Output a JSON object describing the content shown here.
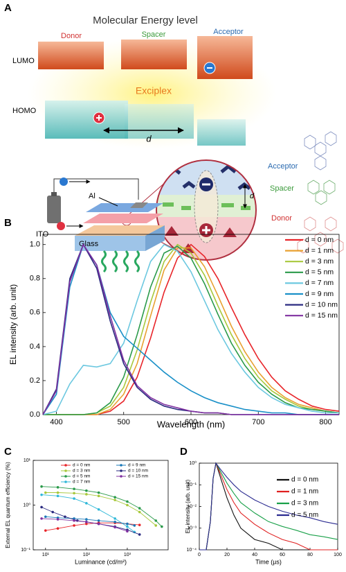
{
  "panel_a": {
    "label": "A",
    "title": "Molecular Energy level",
    "lumo": "LUMO",
    "homo": "HOMO",
    "donor": "Donor",
    "spacer": "Spacer",
    "acceptor": "Acceptor",
    "exciplex": "Exciplex",
    "distance": "d",
    "inset": {
      "acceptor": "Acceptor",
      "spacer": "Spacer",
      "donor": "Donor",
      "distance": "d"
    },
    "device": {
      "al": "Al",
      "ito": "ITO",
      "glass": "Glass"
    }
  },
  "chart_data": [
    {
      "type": "line",
      "panel": "B",
      "xlabel": "Wavelength (nm)",
      "ylabel": "EL intensity (arb. unit)",
      "xscale": "linear",
      "yscale": "linear",
      "markers": false,
      "x": [
        380,
        400,
        420,
        440,
        460,
        480,
        500,
        520,
        540,
        560,
        580,
        600,
        620,
        640,
        660,
        680,
        700,
        720,
        740,
        760,
        780,
        800,
        820
      ],
      "xlim": [
        380,
        820
      ],
      "xticks": [
        400,
        500,
        600,
        700,
        800
      ],
      "ylim": [
        0,
        1.06
      ],
      "yticks": [
        {
          "value": 0,
          "label": "0.0"
        },
        0.2,
        0.4,
        0.6,
        0.8,
        {
          "value": 1,
          "label": "1.0"
        }
      ],
      "series": [
        {
          "name": "d = 0 nm",
          "color": "#e8252a",
          "values": [
            0,
            0,
            0,
            0,
            0,
            0.02,
            0.08,
            0.22,
            0.45,
            0.72,
            0.92,
            1.0,
            0.93,
            0.8,
            0.63,
            0.47,
            0.33,
            0.22,
            0.14,
            0.09,
            0.05,
            0.03,
            0.02
          ]
        },
        {
          "name": "d = 1 nm",
          "color": "#e8a030",
          "values": [
            0,
            0,
            0,
            0,
            0,
            0.03,
            0.12,
            0.3,
            0.58,
            0.85,
            0.98,
            0.98,
            0.87,
            0.7,
            0.52,
            0.37,
            0.25,
            0.16,
            0.1,
            0.06,
            0.04,
            0.02,
            0.01
          ]
        },
        {
          "name": "d = 3 nm",
          "color": "#a8c83c",
          "values": [
            0,
            0,
            0,
            0,
            0.01,
            0.05,
            0.16,
            0.38,
            0.66,
            0.9,
            1.0,
            0.95,
            0.82,
            0.64,
            0.47,
            0.33,
            0.22,
            0.14,
            0.09,
            0.05,
            0.03,
            0.02,
            0.01
          ]
        },
        {
          "name": "d = 5 nm",
          "color": "#2a9a4a",
          "values": [
            0,
            0,
            0,
            0,
            0.01,
            0.07,
            0.22,
            0.47,
            0.75,
            0.95,
            0.99,
            0.92,
            0.77,
            0.59,
            0.42,
            0.29,
            0.19,
            0.12,
            0.07,
            0.04,
            0.03,
            0.02,
            0.01
          ]
        },
        {
          "name": "d = 7 nm",
          "color": "#6cc8e0",
          "values": [
            0,
            0.02,
            0.18,
            0.29,
            0.28,
            0.3,
            0.42,
            0.67,
            0.9,
            1.0,
            0.96,
            0.84,
            0.67,
            0.5,
            0.36,
            0.25,
            0.16,
            0.1,
            0.06,
            0.04,
            0.02,
            0.01,
            0.01
          ]
        },
        {
          "name": "d = 9 nm",
          "color": "#1a90c8",
          "values": [
            0,
            0.12,
            0.75,
            1.0,
            0.88,
            0.6,
            0.46,
            0.39,
            0.32,
            0.25,
            0.19,
            0.14,
            0.1,
            0.07,
            0.05,
            0.03,
            0.02,
            0.01,
            0.01,
            0,
            0,
            0,
            0
          ]
        },
        {
          "name": "d = 10 nm",
          "color": "#2a2a80",
          "values": [
            0,
            0.15,
            0.8,
            1.0,
            0.86,
            0.55,
            0.3,
            0.16,
            0.09,
            0.05,
            0.03,
            0.02,
            0.01,
            0.01,
            0,
            0,
            0,
            0,
            0,
            0,
            0,
            0,
            0
          ]
        },
        {
          "name": "d = 15 nm",
          "color": "#8030a0",
          "values": [
            0,
            0.14,
            0.78,
            1.0,
            0.88,
            0.58,
            0.32,
            0.17,
            0.1,
            0.06,
            0.04,
            0.02,
            0.01,
            0.01,
            0,
            0,
            0,
            0,
            0,
            0,
            0,
            0,
            0
          ]
        }
      ]
    },
    {
      "type": "line",
      "panel": "C",
      "xlabel": "Luminance (cd/m²)",
      "ylabel": "External EL quantum efficiency (%)",
      "xscale": "log",
      "yscale": "log",
      "markers": true,
      "xlim": [
        5,
        10000
      ],
      "xticks": [
        {
          "value": 10,
          "label": "10¹"
        },
        {
          "value": 100,
          "label": "10²"
        },
        {
          "value": 1000,
          "label": "10³"
        }
      ],
      "ylim": [
        0.1,
        10
      ],
      "yticks": [
        {
          "value": 0.1,
          "label": "10⁻¹"
        },
        {
          "value": 1,
          "label": "10⁰"
        },
        {
          "value": 10,
          "label": "10¹"
        }
      ],
      "series": [
        {
          "name": "d = 0 nm",
          "color": "#e8252a",
          "x": [
            10,
            20,
            50,
            100,
            200,
            500,
            1000,
            2000
          ],
          "values": [
            0.27,
            0.3,
            0.35,
            0.38,
            0.4,
            0.4,
            0.38,
            0.36
          ]
        },
        {
          "name": "d = 3 nm",
          "color": "#a8c83c",
          "x": [
            10,
            20,
            50,
            100,
            200,
            500,
            1000,
            2000,
            5000
          ],
          "values": [
            1.9,
            1.9,
            1.85,
            1.75,
            1.6,
            1.3,
            1.0,
            0.7,
            0.35
          ]
        },
        {
          "name": "d = 5 nm",
          "color": "#2a9a4a",
          "x": [
            8,
            20,
            50,
            100,
            200,
            500,
            1000,
            2000,
            5000,
            7000
          ],
          "values": [
            2.6,
            2.5,
            2.3,
            2.1,
            1.9,
            1.5,
            1.2,
            0.85,
            0.45,
            0.33
          ]
        },
        {
          "name": "d = 7 nm",
          "color": "#30b8d8",
          "x": [
            8,
            20,
            50,
            100,
            200,
            500,
            1000,
            1500
          ],
          "values": [
            1.7,
            1.6,
            1.4,
            1.1,
            0.8,
            0.5,
            0.33,
            0.25
          ]
        },
        {
          "name": "d = 9 nm",
          "color": "#1a78b8",
          "x": [
            10,
            20,
            50,
            100,
            200,
            500,
            1000,
            1500
          ],
          "values": [
            0.55,
            0.52,
            0.5,
            0.48,
            0.45,
            0.42,
            0.38,
            0.35
          ]
        },
        {
          "name": "d = 10 nm",
          "color": "#2a2a80",
          "x": [
            8,
            15,
            30,
            60,
            100,
            200,
            500,
            1000,
            2000
          ],
          "values": [
            0.9,
            0.7,
            0.55,
            0.45,
            0.42,
            0.38,
            0.33,
            0.28,
            0.22
          ]
        },
        {
          "name": "d = 15 nm",
          "color": "#8030a0",
          "x": [
            8,
            20,
            50,
            100,
            200,
            500,
            1000
          ],
          "values": [
            0.5,
            0.48,
            0.45,
            0.42,
            0.38,
            0.32,
            0.26
          ]
        }
      ]
    },
    {
      "type": "line",
      "panel": "D",
      "xlabel": "Time (µs)",
      "ylabel": "EL intensity (arb. unit)",
      "xscale": "linear",
      "yscale": "log",
      "markers": false,
      "x": [
        0,
        5,
        8,
        10,
        12,
        15,
        20,
        25,
        30,
        40,
        50,
        60,
        70,
        80,
        90,
        100
      ],
      "xlim": [
        0,
        100
      ],
      "xticks": [
        0,
        20,
        40,
        60,
        80,
        100
      ],
      "ylim": [
        0.0001,
        1
      ],
      "yticks": [
        {
          "value": 0.0001,
          "label": "10⁻⁴"
        },
        {
          "value": 0.001,
          "label": "10⁻³"
        },
        {
          "value": 0.01,
          "label": "10⁻²"
        },
        {
          "value": 0.1,
          "label": "10⁻¹"
        },
        {
          "value": 1,
          "label": "10⁰"
        }
      ],
      "series": [
        {
          "name": "d = 0 nm",
          "color": "#111111",
          "values": [
            0.0001,
            0.0001,
            0.002,
            0.2,
            1,
            0.25,
            0.025,
            0.004,
            0.001,
            0.0003,
            0.0002,
            0.0001,
            0.0001,
            0.0001,
            0.0001,
            0.0001
          ]
        },
        {
          "name": "d = 1 nm",
          "color": "#e02020",
          "values": [
            0.0001,
            0.0001,
            0.002,
            0.2,
            1,
            0.35,
            0.06,
            0.015,
            0.005,
            0.0015,
            0.0006,
            0.0003,
            0.0002,
            0.0001,
            0.0001,
            0.0001
          ]
        },
        {
          "name": "d = 3 nm",
          "color": "#18a048",
          "values": [
            0.0001,
            0.0001,
            0.002,
            0.2,
            1,
            0.45,
            0.12,
            0.04,
            0.015,
            0.005,
            0.002,
            0.0012,
            0.0008,
            0.0005,
            0.0004,
            0.0003
          ]
        },
        {
          "name": "d = 5 nm",
          "color": "#2a2a90",
          "values": [
            0.0001,
            0.0001,
            0.002,
            0.2,
            1,
            0.55,
            0.22,
            0.1,
            0.05,
            0.02,
            0.01,
            0.006,
            0.004,
            0.003,
            0.002,
            0.0015
          ]
        }
      ]
    }
  ]
}
